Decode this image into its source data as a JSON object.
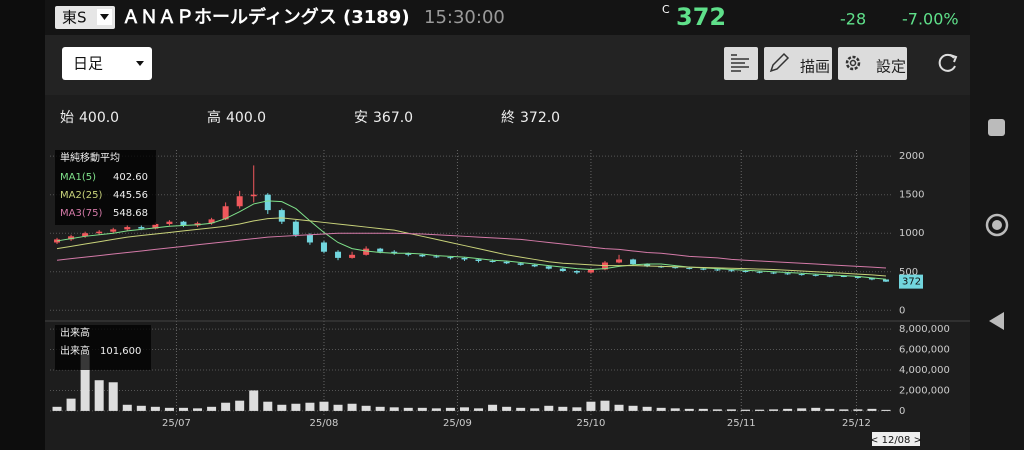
{
  "header": {
    "market": "東S",
    "name": "ＡＮＡＰホールディングス (3189)",
    "time": "15:30:00",
    "price_flag": "C",
    "price": "372",
    "change": "-28",
    "change_pct": "-7.00%"
  },
  "toolbar": {
    "period": "日足",
    "draw": "描画",
    "settings": "設定"
  },
  "ohlc": [
    {
      "label": "始",
      "value": "400.0"
    },
    {
      "label": "高",
      "value": "400.0"
    },
    {
      "label": "安",
      "value": "367.0"
    },
    {
      "label": "終",
      "value": "372.0"
    }
  ],
  "footer": {
    "cursor": "< 12/08 >"
  },
  "chart_data": [
    {
      "type": "candlestick",
      "legend_title": "単純移動平均",
      "up_color": "#f0585c",
      "down_color": "#72d6de",
      "x": [
        0,
        1,
        2,
        3,
        4,
        5,
        6,
        7,
        8,
        9,
        10,
        11,
        12,
        13,
        14,
        15,
        16,
        17,
        18,
        19,
        20,
        21,
        22,
        23,
        24,
        25,
        26,
        27,
        28,
        29,
        30,
        31,
        32,
        33,
        34,
        35,
        36,
        37,
        38,
        39,
        40,
        41,
        42,
        43,
        44,
        45,
        46,
        47,
        48,
        49,
        50,
        51,
        52,
        53,
        54,
        55,
        56,
        57,
        58,
        59
      ],
      "open": [
        880,
        920,
        960,
        1000,
        1020,
        1050,
        1080,
        1060,
        1120,
        1150,
        1100,
        1130,
        1180,
        1350,
        1480,
        1500,
        1300,
        1150,
        980,
        880,
        760,
        680,
        720,
        800,
        760,
        740,
        720,
        700,
        690,
        680,
        660,
        640,
        630,
        610,
        590,
        570,
        540,
        510,
        490,
        530,
        620,
        660,
        600,
        570,
        560,
        550,
        540,
        530,
        520,
        510,
        500,
        490,
        480,
        470,
        460,
        450,
        445,
        440,
        420,
        400
      ],
      "high": [
        940,
        980,
        1020,
        1040,
        1070,
        1100,
        1100,
        1140,
        1170,
        1160,
        1150,
        1200,
        1400,
        1550,
        1880,
        1520,
        1320,
        1170,
        1000,
        900,
        780,
        760,
        830,
        810,
        780,
        750,
        730,
        720,
        700,
        690,
        670,
        660,
        640,
        620,
        600,
        580,
        550,
        520,
        540,
        640,
        720,
        670,
        610,
        580,
        570,
        560,
        550,
        540,
        530,
        520,
        510,
        500,
        490,
        480,
        470,
        460,
        455,
        445,
        425,
        400
      ],
      "low": [
        860,
        900,
        940,
        980,
        1000,
        1030,
        1040,
        1050,
        1100,
        1080,
        1080,
        1110,
        1170,
        1320,
        1400,
        1250,
        1120,
        950,
        850,
        740,
        650,
        670,
        710,
        740,
        720,
        700,
        690,
        680,
        660,
        640,
        620,
        620,
        600,
        580,
        560,
        530,
        500,
        470,
        480,
        520,
        610,
        590,
        560,
        550,
        540,
        530,
        520,
        510,
        500,
        490,
        480,
        470,
        460,
        450,
        440,
        430,
        430,
        410,
        390,
        367
      ],
      "close": [
        920,
        960,
        1000,
        1020,
        1050,
        1080,
        1060,
        1120,
        1150,
        1100,
        1130,
        1180,
        1350,
        1480,
        1500,
        1300,
        1150,
        980,
        880,
        760,
        680,
        720,
        800,
        760,
        740,
        720,
        700,
        690,
        680,
        660,
        640,
        630,
        610,
        590,
        570,
        540,
        510,
        490,
        530,
        620,
        660,
        600,
        570,
        560,
        550,
        540,
        530,
        520,
        510,
        500,
        490,
        480,
        470,
        460,
        450,
        445,
        440,
        420,
        400,
        372
      ],
      "series": [
        {
          "name": "MA1(5)",
          "color": "#7fe08a",
          "last_label": "402.60",
          "values": [
            900,
            930,
            960,
            980,
            1000,
            1030,
            1050,
            1070,
            1090,
            1100,
            1110,
            1130,
            1190,
            1280,
            1380,
            1420,
            1410,
            1320,
            1160,
            1010,
            880,
            800,
            770,
            750,
            740,
            740,
            730,
            710,
            700,
            690,
            670,
            650,
            640,
            620,
            600,
            580,
            560,
            540,
            530,
            540,
            570,
            590,
            600,
            600,
            580,
            560,
            550,
            540,
            530,
            520,
            510,
            500,
            490,
            480,
            470,
            460,
            450,
            440,
            420,
            402.6
          ]
        },
        {
          "name": "MA2(25)",
          "color": "#c8d27a",
          "last_label": "445.56",
          "values": [
            800,
            830,
            860,
            890,
            920,
            950,
            970,
            990,
            1010,
            1030,
            1050,
            1070,
            1090,
            1120,
            1160,
            1190,
            1200,
            1180,
            1160,
            1140,
            1120,
            1100,
            1080,
            1060,
            1040,
            1000,
            960,
            920,
            880,
            840,
            800,
            760,
            720,
            690,
            660,
            630,
            610,
            600,
            590,
            580,
            580,
            580,
            575,
            570,
            565,
            560,
            555,
            550,
            545,
            540,
            535,
            530,
            520,
            510,
            500,
            490,
            480,
            470,
            460,
            445.56
          ]
        },
        {
          "name": "MA3(75)",
          "color": "#d47aa8",
          "last_label": "548.68",
          "values": [
            650,
            670,
            690,
            710,
            730,
            750,
            770,
            790,
            810,
            830,
            850,
            870,
            890,
            910,
            930,
            950,
            960,
            970,
            980,
            990,
            1000,
            1000,
            1000,
            1000,
            1000,
            995,
            990,
            980,
            970,
            960,
            950,
            940,
            930,
            920,
            900,
            880,
            860,
            840,
            820,
            800,
            790,
            770,
            750,
            740,
            720,
            700,
            690,
            680,
            660,
            650,
            640,
            630,
            620,
            610,
            600,
            590,
            580,
            570,
            560,
            548.68
          ]
        }
      ],
      "xlim": [
        -0.5,
        59.5
      ],
      "ylim": [
        -100,
        2080
      ],
      "yticks": [
        0,
        500,
        1000,
        1500,
        2000
      ],
      "grid": true
    },
    {
      "type": "bar",
      "title": "出来高",
      "x": [
        0,
        1,
        2,
        3,
        4,
        5,
        6,
        7,
        8,
        9,
        10,
        11,
        12,
        13,
        14,
        15,
        16,
        17,
        18,
        19,
        20,
        21,
        22,
        23,
        24,
        25,
        26,
        27,
        28,
        29,
        30,
        31,
        32,
        33,
        34,
        35,
        36,
        37,
        38,
        39,
        40,
        41,
        42,
        43,
        44,
        45,
        46,
        47,
        48,
        49,
        50,
        51,
        52,
        53,
        54,
        55,
        56,
        57,
        58,
        59
      ],
      "series": [
        {
          "name": "出来高",
          "color": "#dddddd",
          "last_label": "101,600",
          "values": [
            400000,
            1200000,
            5600000,
            3000000,
            2800000,
            600000,
            500000,
            400000,
            300000,
            300000,
            250000,
            400000,
            800000,
            1000000,
            2000000,
            900000,
            600000,
            700000,
            800000,
            900000,
            600000,
            700000,
            500000,
            400000,
            350000,
            300000,
            300000,
            250000,
            300000,
            350000,
            250000,
            600000,
            400000,
            300000,
            250000,
            500000,
            400000,
            350000,
            900000,
            1000000,
            600000,
            500000,
            400000,
            300000,
            250000,
            200000,
            200000,
            150000,
            150000,
            120000,
            120000,
            150000,
            200000,
            250000,
            300000,
            200000,
            150000,
            150000,
            200000,
            101600
          ]
        }
      ],
      "xlim": [
        -0.5,
        59.5
      ],
      "ylim": [
        -400000,
        8400000
      ],
      "yticks": [
        0,
        {
          "value": 2000000,
          "label": "2,000,000"
        },
        {
          "value": 4000000,
          "label": "4,000,000"
        },
        {
          "value": 6000000,
          "label": "6,000,000"
        },
        {
          "value": 8000000,
          "label": "8,000,000"
        }
      ],
      "xticks": [
        {
          "value": 8.5,
          "label": "25/07"
        },
        {
          "value": 19,
          "label": "25/08"
        },
        {
          "value": 28.5,
          "label": "25/09"
        },
        {
          "value": 38,
          "label": "25/10"
        },
        {
          "value": 48.7,
          "label": "25/11"
        },
        {
          "value": 56.9,
          "label": "25/12"
        }
      ],
      "grid": true
    }
  ]
}
